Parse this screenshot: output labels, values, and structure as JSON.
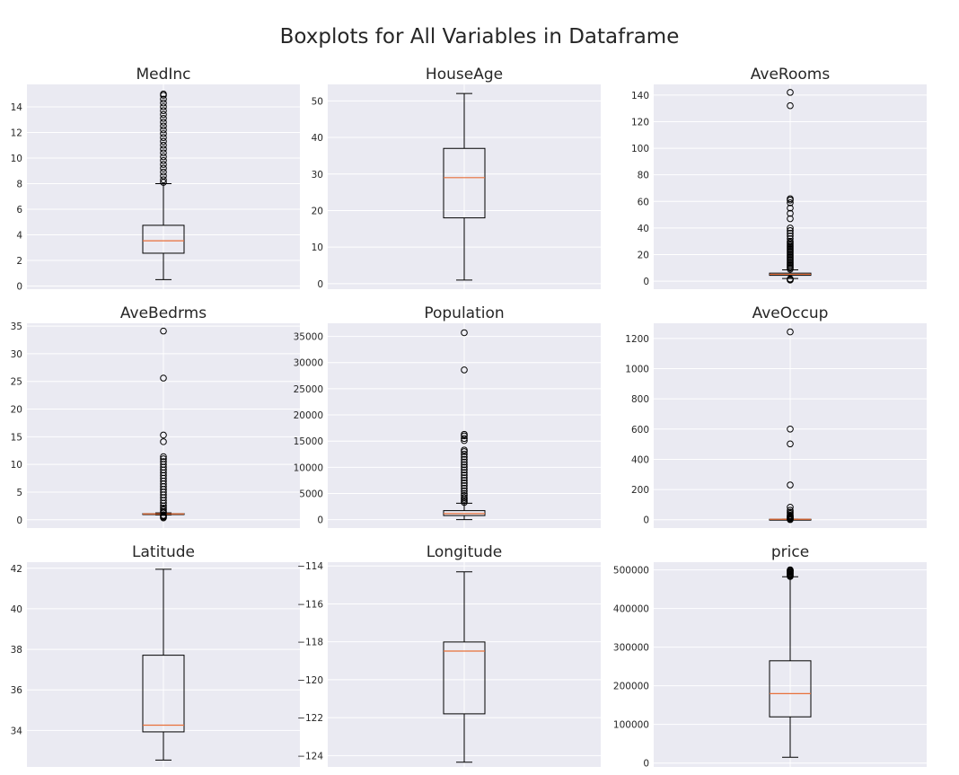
{
  "title": "Boxplots for All Variables in Dataframe",
  "chart_data": [
    {
      "type": "box",
      "title": "MedInc",
      "ylim": [
        -0.25,
        15.75
      ],
      "yticks": [
        0,
        2,
        4,
        6,
        8,
        10,
        12,
        14
      ],
      "whisker_low": 0.5,
      "q1": 2.56,
      "median": 3.53,
      "q3": 4.74,
      "whisker_high": 8.0,
      "outliers": [
        8.1,
        8.3,
        8.6,
        8.9,
        9.2,
        9.5,
        9.8,
        10.1,
        10.4,
        10.7,
        11.0,
        11.3,
        11.6,
        11.9,
        12.2,
        12.5,
        12.8,
        13.1,
        13.4,
        13.7,
        14.0,
        14.3,
        14.6,
        14.9,
        15.0
      ]
    },
    {
      "type": "box",
      "title": "HouseAge",
      "ylim": [
        -1.5,
        54.5
      ],
      "yticks": [
        0,
        10,
        20,
        30,
        40,
        50
      ],
      "whisker_low": 1,
      "q1": 18,
      "median": 29,
      "q3": 37,
      "whisker_high": 52,
      "outliers": []
    },
    {
      "type": "box",
      "title": "AveRooms",
      "ylim": [
        -6,
        148
      ],
      "yticks": [
        0,
        20,
        40,
        60,
        80,
        100,
        120,
        140
      ],
      "whisker_low": 2.0,
      "q1": 4.4,
      "median": 5.2,
      "q3": 6.05,
      "whisker_high": 8.5,
      "outliers": [
        0.85,
        1.3,
        1.7,
        9,
        10,
        11,
        12,
        13,
        14,
        15,
        16,
        17,
        18,
        19,
        20,
        21,
        22,
        23,
        24,
        25,
        26,
        27,
        28,
        29,
        30,
        32,
        34,
        36,
        38,
        40,
        47,
        51,
        55,
        59,
        61,
        62,
        132,
        142
      ]
    },
    {
      "type": "box",
      "title": "AveBedrms",
      "ylim": [
        -1.5,
        35.5
      ],
      "yticks": [
        0,
        5,
        10,
        15,
        20,
        25,
        30,
        35
      ],
      "whisker_low": 0.87,
      "q1": 1.0,
      "median": 1.05,
      "q3": 1.1,
      "whisker_high": 1.24,
      "outliers": [
        0.33,
        0.5,
        0.65,
        0.8,
        1.3,
        1.5,
        1.8,
        2.1,
        2.5,
        3.0,
        3.5,
        4.0,
        4.5,
        5.0,
        5.5,
        6.0,
        6.5,
        7.0,
        7.5,
        8.0,
        8.5,
        9.0,
        9.5,
        10.0,
        10.5,
        11.0,
        11.4,
        14.1,
        15.3,
        25.6,
        34.1
      ]
    },
    {
      "type": "box",
      "title": "Population",
      "ylim": [
        -1600,
        37500
      ],
      "yticks": [
        0,
        5000,
        10000,
        15000,
        20000,
        25000,
        30000,
        35000
      ],
      "whisker_low": 3,
      "q1": 787,
      "median": 1166,
      "q3": 1725,
      "whisker_high": 3132,
      "outliers": [
        3300,
        3600,
        3900,
        4200,
        4600,
        5000,
        5500,
        6000,
        6500,
        7000,
        7500,
        8000,
        8500,
        9000,
        9500,
        10000,
        10500,
        11000,
        11500,
        12000,
        12500,
        13000,
        13300,
        15100,
        15500,
        16000,
        16300,
        28600,
        35700
      ]
    },
    {
      "type": "box",
      "title": "AveOccup",
      "ylim": [
        -55,
        1300
      ],
      "yticks": [
        0,
        200,
        400,
        600,
        800,
        1000,
        1200
      ],
      "whisker_low": 1.2,
      "q1": 2.43,
      "median": 2.82,
      "q3": 3.28,
      "whisker_high": 4.56,
      "outliers": [
        0.7,
        5,
        8,
        12,
        16,
        20,
        25,
        30,
        40,
        50,
        63,
        83,
        230,
        502,
        600,
        1243
      ]
    },
    {
      "type": "box",
      "title": "Latitude",
      "ylim": [
        32.2,
        42.3
      ],
      "yticks": [
        34,
        36,
        38,
        40,
        42
      ],
      "whisker_low": 32.54,
      "q1": 33.93,
      "median": 34.26,
      "q3": 37.71,
      "whisker_high": 41.95,
      "outliers": []
    },
    {
      "type": "box",
      "title": "Longitude",
      "ylim": [
        -124.6,
        -113.8
      ],
      "yticks": [
        -124,
        -122,
        -120,
        -118,
        -116,
        -114
      ],
      "whisker_low": -124.35,
      "q1": -121.8,
      "median": -118.49,
      "q3": -118.01,
      "whisker_high": -114.31,
      "outliers": []
    },
    {
      "type": "box",
      "title": "price",
      "ylim": [
        -10000,
        520000
      ],
      "yticks": [
        0,
        100000,
        200000,
        300000,
        400000,
        500000
      ],
      "whisker_low": 14999,
      "q1": 119600,
      "median": 179700,
      "q3": 264725,
      "whisker_high": 482200,
      "outliers": [
        483000,
        485000,
        487000,
        489000,
        491000,
        493000,
        495000,
        497000,
        499000,
        500001
      ]
    }
  ]
}
